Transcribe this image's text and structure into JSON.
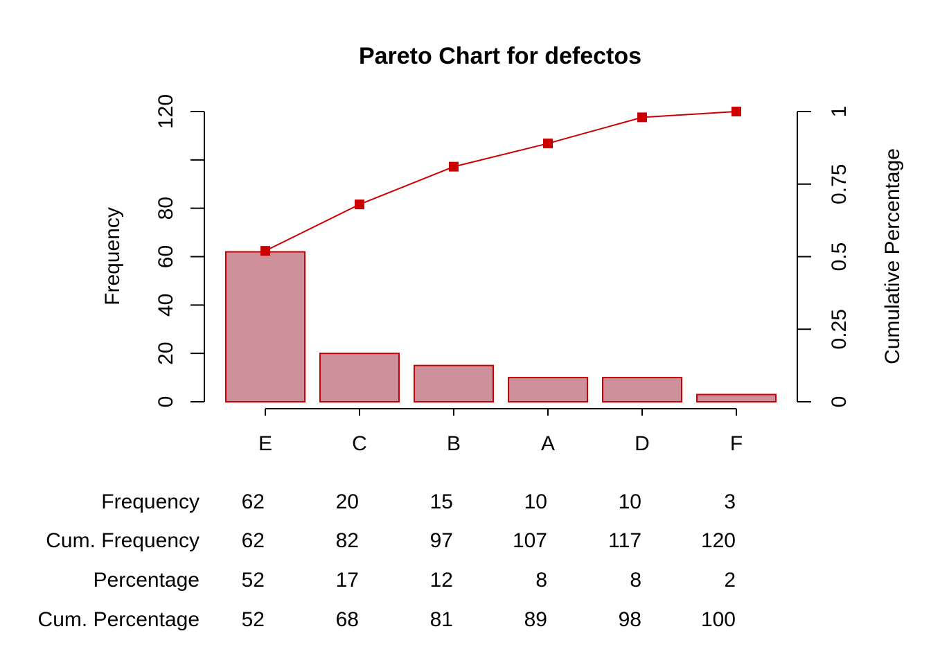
{
  "chart_data": {
    "type": "bar",
    "title": "Pareto Chart for  defectos",
    "ylabel": "Frequency",
    "y2label": "Cumulative Percentage",
    "categories": [
      "E",
      "C",
      "B",
      "A",
      "D",
      "F"
    ],
    "ylim": [
      0,
      120
    ],
    "y2lim": [
      0,
      1
    ],
    "yticks": [
      "0",
      "20",
      "40",
      "60",
      "80",
      "120"
    ],
    "yticks_minor": [
      100
    ],
    "y2ticks": [
      "0",
      "0.25",
      "0.5",
      "0.75",
      "1"
    ],
    "grid": false,
    "series": [
      {
        "type": "bar",
        "values": [
          62,
          20,
          15,
          10,
          10,
          3
        ]
      },
      {
        "type": "line",
        "values": [
          0.52,
          0.68,
          0.81,
          0.89,
          0.98,
          1.0
        ]
      }
    ],
    "table": {
      "row_labels": [
        "Frequency",
        "Cum. Frequency",
        "Percentage",
        "Cum. Percentage"
      ],
      "rows": [
        [
          "62",
          "20",
          "15",
          "10",
          "10",
          "3"
        ],
        [
          "62",
          "82",
          "97",
          "107",
          "117",
          "120"
        ],
        [
          "52",
          "17",
          "12",
          "8",
          "8",
          "2"
        ],
        [
          "52",
          "68",
          "81",
          "89",
          "98",
          "100"
        ]
      ]
    },
    "colors": {
      "bar_fill": "#cd8f9a",
      "bar_stroke": "#cc0000",
      "line": "#cc0000",
      "marker": "#cc0000"
    }
  }
}
